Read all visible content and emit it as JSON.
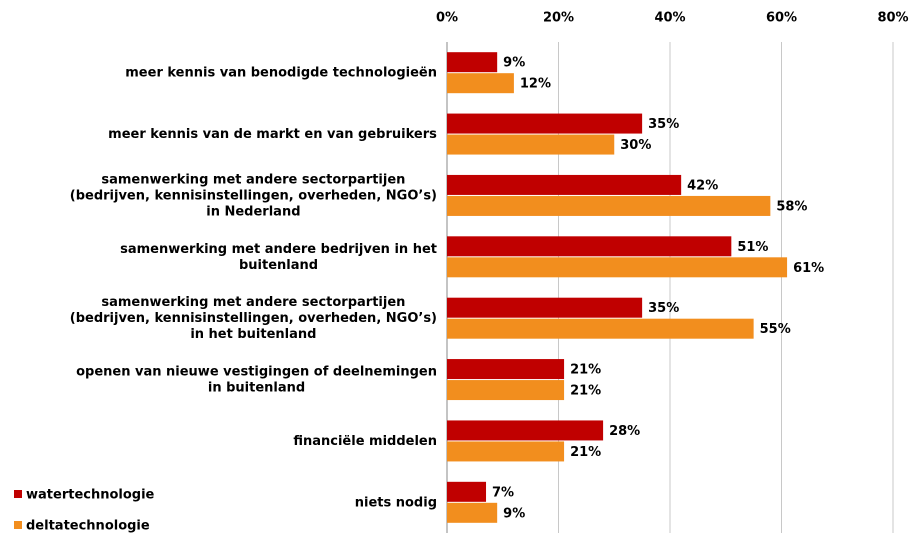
{
  "chart_data": {
    "type": "hbar",
    "categories": [
      "meer kennis van benodigde technologieën",
      "meer kennis van de markt en van gebruikers",
      "samenwerking met andere sectorpartijen\n(bedrijven, kennisinstellingen, overheden, NGO’s)\nin Nederland",
      "samenwerking met andere bedrijven in het\nbuitenland",
      "samenwerking met andere sectorpartijen\n(bedrijven, kennisinstellingen, overheden, NGO’s)\nin het buitenland",
      "openen van nieuwe vestigingen of deelnemingen\nin buitenland",
      "financiële middelen",
      "niets nodig"
    ],
    "series": [
      {
        "name": "watertechnologie",
        "color": "#c00000",
        "values": [
          9,
          35,
          42,
          51,
          35,
          21,
          28,
          7
        ],
        "value_labels": [
          "9%",
          "35%",
          "42%",
          "51%",
          "35%",
          "21%",
          "28%",
          "7%"
        ]
      },
      {
        "name": "deltatechnologie",
        "color": "#f28e1e",
        "values": [
          12,
          30,
          58,
          61,
          55,
          21,
          21,
          9
        ],
        "value_labels": [
          "12%",
          "30%",
          "58%",
          "61%",
          "55%",
          "21%",
          "21%",
          "9%"
        ]
      }
    ],
    "xlim": [
      0,
      80
    ],
    "xticks": [
      {
        "value": 0,
        "label": "0%"
      },
      {
        "value": 20,
        "label": "20%"
      },
      {
        "value": 40,
        "label": "40%"
      },
      {
        "value": 60,
        "label": "60%"
      },
      {
        "value": 80,
        "label": "80%"
      }
    ],
    "grid": true,
    "legend": "lower left"
  }
}
